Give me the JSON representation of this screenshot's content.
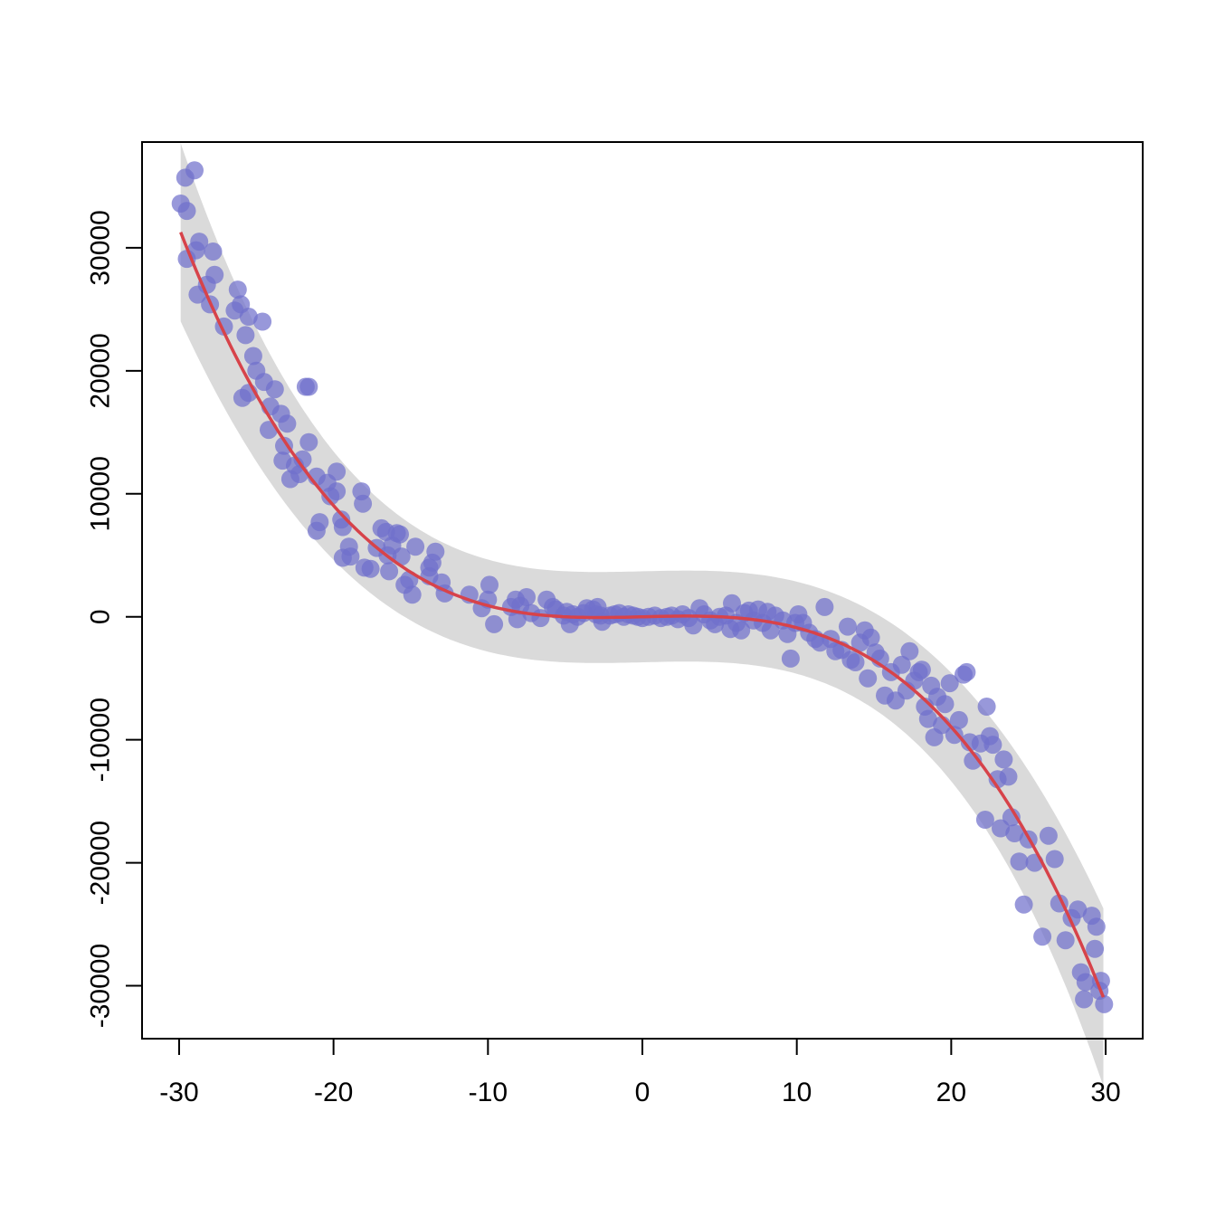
{
  "chart_data": {
    "type": "scatter",
    "title": "",
    "xlabel": "",
    "ylabel": "",
    "xlim": [
      -32.4,
      32.4
    ],
    "ylim": [
      -34300,
      38600
    ],
    "x_ticks": [
      -30,
      -20,
      -10,
      0,
      10,
      20,
      30
    ],
    "y_ticks": [
      -30000,
      -20000,
      -10000,
      0,
      10000,
      20000,
      30000
    ],
    "x_tick_labels": [
      "-30",
      "-20",
      "-10",
      "0",
      "10",
      "20",
      "30"
    ],
    "y_tick_labels": [
      "-30000",
      "-20000",
      "-10000",
      "0",
      "10000",
      "20000",
      "30000"
    ],
    "grid": false,
    "legend": "none",
    "fit_curve": {
      "type": "cubic",
      "coefficients": {
        "a": -1.2,
        "b": 0.1,
        "c": 30,
        "d": 0
      },
      "confidence_band_halfwidth": 3700
    },
    "series": [
      {
        "values": [
          [
            -29.9,
            33600
          ],
          [
            -29.6,
            35700
          ],
          [
            -29.5,
            33000
          ],
          [
            -29.5,
            29100
          ],
          [
            -29.0,
            36300
          ],
          [
            -28.9,
            29800
          ],
          [
            -28.7,
            30500
          ],
          [
            -28.8,
            26200
          ],
          [
            -28.2,
            27000
          ],
          [
            -28.0,
            25400
          ],
          [
            -27.8,
            29700
          ],
          [
            -27.7,
            27800
          ],
          [
            -27.1,
            23600
          ],
          [
            -26.4,
            24900
          ],
          [
            -26.2,
            26600
          ],
          [
            -26.0,
            25400
          ],
          [
            -25.9,
            17800
          ],
          [
            -25.7,
            22900
          ],
          [
            -25.5,
            24400
          ],
          [
            -25.5,
            18200
          ],
          [
            -25.2,
            21200
          ],
          [
            -25.0,
            20000
          ],
          [
            -24.6,
            24000
          ],
          [
            -24.5,
            19100
          ],
          [
            -24.2,
            15200
          ],
          [
            -24.1,
            17100
          ],
          [
            -23.8,
            18500
          ],
          [
            -23.4,
            16500
          ],
          [
            -23.3,
            12700
          ],
          [
            -23.2,
            13900
          ],
          [
            -23.0,
            15700
          ],
          [
            -22.8,
            11200
          ],
          [
            -22.5,
            12300
          ],
          [
            -22.2,
            11600
          ],
          [
            -22.0,
            12800
          ],
          [
            -21.8,
            18700
          ],
          [
            -21.6,
            18700
          ],
          [
            -21.6,
            14200
          ],
          [
            -21.1,
            11400
          ],
          [
            -21.1,
            7000
          ],
          [
            -20.9,
            7700
          ],
          [
            -20.4,
            10900
          ],
          [
            -20.2,
            9800
          ],
          [
            -19.8,
            11800
          ],
          [
            -19.8,
            10200
          ],
          [
            -19.5,
            7900
          ],
          [
            -19.4,
            7300
          ],
          [
            -19.4,
            4800
          ],
          [
            -19.0,
            5700
          ],
          [
            -18.9,
            4900
          ],
          [
            -18.2,
            10200
          ],
          [
            -18.1,
            9200
          ],
          [
            -18.0,
            4000
          ],
          [
            -17.6,
            3900
          ],
          [
            -17.2,
            5600
          ],
          [
            -16.9,
            7200
          ],
          [
            -16.6,
            6900
          ],
          [
            -16.5,
            5000
          ],
          [
            -16.4,
            3700
          ],
          [
            -16.2,
            5800
          ],
          [
            -15.9,
            6800
          ],
          [
            -15.7,
            6700
          ],
          [
            -15.6,
            4900
          ],
          [
            -15.4,
            2600
          ],
          [
            -15.1,
            3000
          ],
          [
            -14.9,
            1800
          ],
          [
            -14.7,
            5700
          ],
          [
            -13.8,
            3300
          ],
          [
            -13.8,
            4000
          ],
          [
            -13.6,
            4400
          ],
          [
            -13.4,
            5300
          ],
          [
            -13.0,
            2800
          ],
          [
            -12.8,
            1900
          ],
          [
            -11.2,
            1800
          ],
          [
            -10.4,
            700
          ],
          [
            -10.0,
            1400
          ],
          [
            -9.9,
            2600
          ],
          [
            -9.6,
            -600
          ],
          [
            -8.5,
            800
          ],
          [
            -8.2,
            1400
          ],
          [
            -8.1,
            -200
          ],
          [
            -7.9,
            900
          ],
          [
            -7.5,
            1600
          ],
          [
            -7.2,
            300
          ],
          [
            -6.6,
            -100
          ],
          [
            -6.2,
            1400
          ],
          [
            -5.8,
            800
          ],
          [
            -5.6,
            600
          ],
          [
            -5.1,
            100
          ],
          [
            -4.9,
            400
          ],
          [
            -4.5,
            200
          ],
          [
            -4.7,
            -600
          ],
          [
            -4.2,
            0
          ],
          [
            -3.8,
            300
          ],
          [
            -3.6,
            700
          ],
          [
            -3.2,
            600
          ],
          [
            -3.0,
            200
          ],
          [
            -2.9,
            800
          ],
          [
            -2.7,
            100
          ],
          [
            -2.6,
            -400
          ],
          [
            -2.1,
            100
          ],
          [
            -1.8,
            200
          ],
          [
            -1.5,
            300
          ],
          [
            -1.2,
            0
          ],
          [
            -0.9,
            200
          ],
          [
            -0.6,
            100
          ],
          [
            -0.3,
            0
          ],
          [
            0.0,
            -100
          ],
          [
            0.4,
            0
          ],
          [
            0.8,
            100
          ],
          [
            1.2,
            -100
          ],
          [
            1.6,
            0
          ],
          [
            1.9,
            100
          ],
          [
            2.3,
            -200
          ],
          [
            2.6,
            200
          ],
          [
            3.0,
            -100
          ],
          [
            3.3,
            -700
          ],
          [
            3.7,
            700
          ],
          [
            4.0,
            200
          ],
          [
            4.4,
            -300
          ],
          [
            4.7,
            -600
          ],
          [
            5.0,
            0
          ],
          [
            5.4,
            100
          ],
          [
            5.7,
            -1000
          ],
          [
            5.8,
            1100
          ],
          [
            6.1,
            -500
          ],
          [
            6.4,
            -1100
          ],
          [
            6.6,
            300
          ],
          [
            6.9,
            500
          ],
          [
            7.2,
            -300
          ],
          [
            7.5,
            600
          ],
          [
            7.8,
            -500
          ],
          [
            8.1,
            400
          ],
          [
            8.3,
            -1100
          ],
          [
            8.6,
            100
          ],
          [
            9.1,
            -300
          ],
          [
            9.4,
            -1400
          ],
          [
            9.6,
            -3400
          ],
          [
            9.9,
            -500
          ],
          [
            10.1,
            200
          ],
          [
            10.4,
            -500
          ],
          [
            10.8,
            -1300
          ],
          [
            11.2,
            -1800
          ],
          [
            11.5,
            -2100
          ],
          [
            11.8,
            800
          ],
          [
            12.2,
            -1800
          ],
          [
            12.5,
            -2800
          ],
          [
            12.9,
            -2700
          ],
          [
            13.3,
            -800
          ],
          [
            13.5,
            -3500
          ],
          [
            13.8,
            -3700
          ],
          [
            14.1,
            -2100
          ],
          [
            14.4,
            -1100
          ],
          [
            14.6,
            -5000
          ],
          [
            14.8,
            -1700
          ],
          [
            15.1,
            -2900
          ],
          [
            15.4,
            -3400
          ],
          [
            15.7,
            -6400
          ],
          [
            16.1,
            -4500
          ],
          [
            16.4,
            -6800
          ],
          [
            16.8,
            -3900
          ],
          [
            17.1,
            -6000
          ],
          [
            17.3,
            -2800
          ],
          [
            17.6,
            -5200
          ],
          [
            17.9,
            -4500
          ],
          [
            18.1,
            -4300
          ],
          [
            18.3,
            -7300
          ],
          [
            18.5,
            -8300
          ],
          [
            18.7,
            -5600
          ],
          [
            18.9,
            -9800
          ],
          [
            19.1,
            -6500
          ],
          [
            19.4,
            -8800
          ],
          [
            19.6,
            -7100
          ],
          [
            19.9,
            -5400
          ],
          [
            20.2,
            -9600
          ],
          [
            20.5,
            -8400
          ],
          [
            20.8,
            -4700
          ],
          [
            21.0,
            -4500
          ],
          [
            21.2,
            -10200
          ],
          [
            21.4,
            -11700
          ],
          [
            21.9,
            -10300
          ],
          [
            22.2,
            -16500
          ],
          [
            22.3,
            -7300
          ],
          [
            22.5,
            -9700
          ],
          [
            22.7,
            -10400
          ],
          [
            23.0,
            -13200
          ],
          [
            23.2,
            -17200
          ],
          [
            23.4,
            -11600
          ],
          [
            23.7,
            -13000
          ],
          [
            23.9,
            -16300
          ],
          [
            24.1,
            -17600
          ],
          [
            24.4,
            -19900
          ],
          [
            24.7,
            -23400
          ],
          [
            25.0,
            -18100
          ],
          [
            25.4,
            -20000
          ],
          [
            25.9,
            -26000
          ],
          [
            26.3,
            -17800
          ],
          [
            26.7,
            -19700
          ],
          [
            27.0,
            -23300
          ],
          [
            27.4,
            -26300
          ],
          [
            27.8,
            -24500
          ],
          [
            28.2,
            -23800
          ],
          [
            28.4,
            -28900
          ],
          [
            28.6,
            -31100
          ],
          [
            28.7,
            -29700
          ],
          [
            29.1,
            -24300
          ],
          [
            29.3,
            -27000
          ],
          [
            29.6,
            -30400
          ],
          [
            29.9,
            -31500
          ],
          [
            29.4,
            -25200
          ],
          [
            29.7,
            -29600
          ]
        ]
      }
    ],
    "colors": {
      "points": "#7070cc",
      "fit_line": "#d7434a",
      "band": "#dadada",
      "axis": "#000000"
    }
  }
}
